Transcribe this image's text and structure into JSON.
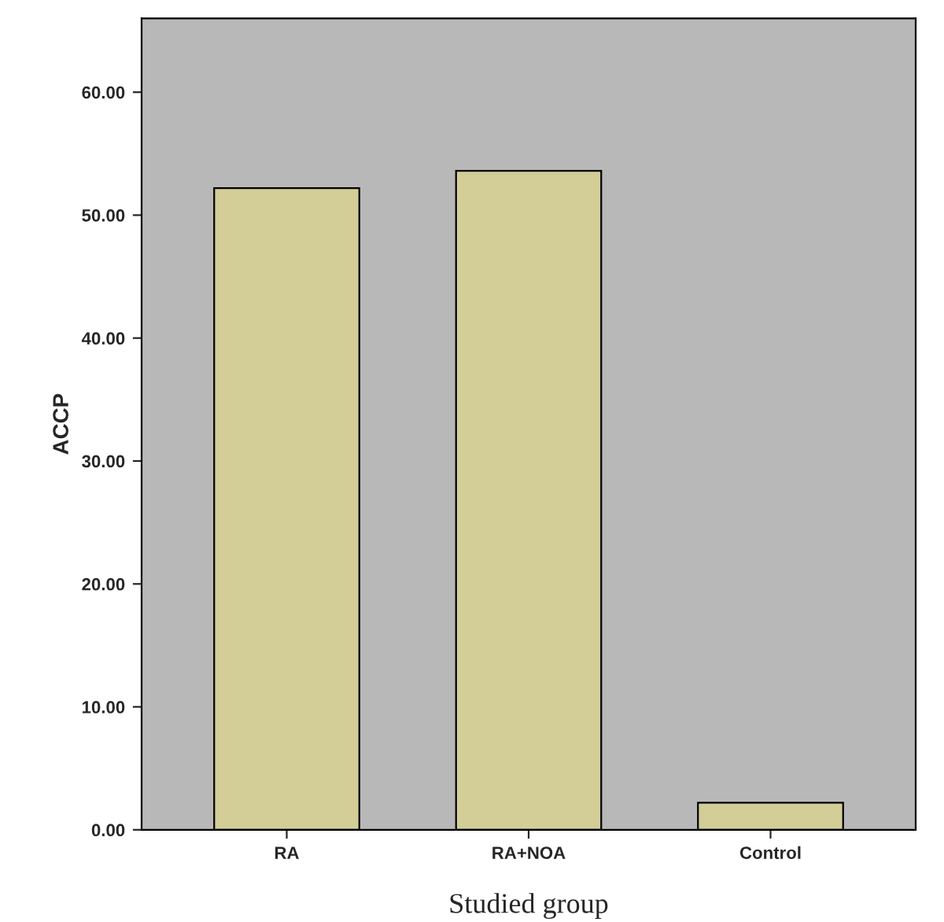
{
  "chart_data": {
    "type": "bar",
    "xlabel": "Studied group",
    "ylabel": "ACCP",
    "categories": [
      "RA",
      "RA+NOA",
      "Control"
    ],
    "values": [
      52.2,
      53.6,
      2.2
    ],
    "color": "#d3ce98",
    "ylim": [
      0,
      66
    ],
    "yticks": [
      {
        "value": 0,
        "label": "0.00"
      },
      {
        "value": 10,
        "label": "10.00"
      },
      {
        "value": 20,
        "label": "20.00"
      },
      {
        "value": 30,
        "label": "30.00"
      },
      {
        "value": 40,
        "label": "40.00"
      },
      {
        "value": 50,
        "label": "50.00"
      },
      {
        "value": 60,
        "label": "60.00"
      }
    ],
    "grid": false
  }
}
